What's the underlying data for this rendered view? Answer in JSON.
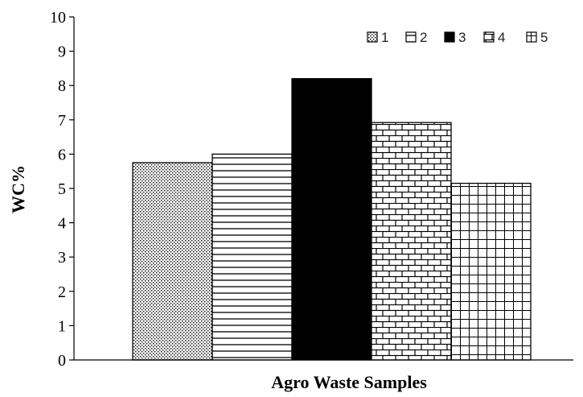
{
  "chart_data": {
    "type": "bar",
    "categories": [
      "1",
      "2",
      "3",
      "4",
      "5"
    ],
    "series": [
      {
        "name": "1",
        "value": 5.75,
        "pattern": "dots"
      },
      {
        "name": "2",
        "value": 6.0,
        "pattern": "horizontal-lines"
      },
      {
        "name": "3",
        "value": 8.2,
        "pattern": "solid"
      },
      {
        "name": "4",
        "value": 6.92,
        "pattern": "bricks"
      },
      {
        "name": "5",
        "value": 5.15,
        "pattern": "grid"
      }
    ],
    "xlabel": "Agro Waste Samples",
    "ylabel": "WC%",
    "ylim": [
      0,
      10
    ],
    "yticks": [
      "0",
      "1",
      "2",
      "3",
      "4",
      "5",
      "6",
      "7",
      "8",
      "9",
      "10"
    ],
    "grid": false,
    "legend_position": "top-right",
    "colors": {
      "ink": "#000000",
      "background": "#ffffff"
    }
  }
}
